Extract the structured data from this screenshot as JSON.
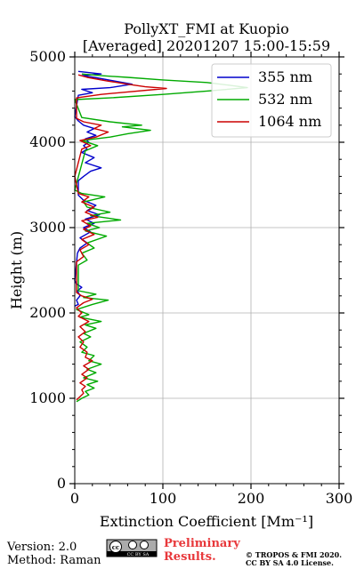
{
  "chart_data": {
    "type": "line",
    "title_line1": "PollyXT_FMI at Kuopio",
    "title_line2": "[Averaged] 20201207 15:00-15:59",
    "xlabel": "Extinction Coefficient [Mm⁻¹]",
    "ylabel": "Height (m)",
    "xlim": [
      0,
      300
    ],
    "ylim": [
      0,
      5000
    ],
    "xticks": [
      0,
      100,
      200,
      300
    ],
    "yticks": [
      0,
      1000,
      2000,
      3000,
      4000,
      5000
    ],
    "grid": true,
    "legend_position": "top-right",
    "series": [
      {
        "name": "355 nm",
        "color": "#0000cc",
        "points": [
          [
            0,
            2080
          ],
          [
            4,
            2100
          ],
          [
            2,
            2150
          ],
          [
            6,
            2200
          ],
          [
            3,
            2260
          ],
          [
            8,
            2300
          ],
          [
            2,
            2340
          ],
          [
            0,
            2380
          ],
          [
            3,
            2700
          ],
          [
            6,
            2760
          ],
          [
            14,
            2820
          ],
          [
            6,
            2880
          ],
          [
            18,
            2950
          ],
          [
            10,
            3000
          ],
          [
            22,
            3050
          ],
          [
            12,
            3100
          ],
          [
            28,
            3150
          ],
          [
            14,
            3200
          ],
          [
            24,
            3260
          ],
          [
            10,
            3320
          ],
          [
            4,
            3380
          ],
          [
            4,
            3550
          ],
          [
            10,
            3600
          ],
          [
            18,
            3660
          ],
          [
            30,
            3700
          ],
          [
            12,
            3760
          ],
          [
            22,
            3820
          ],
          [
            8,
            3880
          ],
          [
            14,
            3920
          ],
          [
            10,
            3960
          ],
          [
            16,
            4000
          ],
          [
            12,
            4040
          ],
          [
            24,
            4080
          ],
          [
            14,
            4120
          ],
          [
            22,
            4160
          ],
          [
            10,
            4200
          ],
          [
            4,
            4250
          ],
          [
            0,
            4300
          ],
          [
            4,
            4550
          ],
          [
            20,
            4580
          ],
          [
            8,
            4620
          ],
          [
            40,
            4640
          ],
          [
            65,
            4680
          ],
          [
            44,
            4720
          ],
          [
            22,
            4760
          ],
          [
            8,
            4780
          ],
          [
            30,
            4800
          ],
          [
            4,
            4830
          ]
        ]
      },
      {
        "name": "532 nm",
        "color": "#00aa00",
        "points": [
          [
            2,
            960
          ],
          [
            8,
            1000
          ],
          [
            16,
            1040
          ],
          [
            12,
            1080
          ],
          [
            22,
            1120
          ],
          [
            14,
            1160
          ],
          [
            26,
            1200
          ],
          [
            10,
            1240
          ],
          [
            24,
            1300
          ],
          [
            14,
            1340
          ],
          [
            30,
            1400
          ],
          [
            16,
            1440
          ],
          [
            22,
            1500
          ],
          [
            8,
            1540
          ],
          [
            14,
            1600
          ],
          [
            6,
            1660
          ],
          [
            18,
            1720
          ],
          [
            10,
            1760
          ],
          [
            24,
            1820
          ],
          [
            12,
            1860
          ],
          [
            30,
            1900
          ],
          [
            6,
            1950
          ],
          [
            16,
            1980
          ],
          [
            2,
            2040
          ],
          [
            20,
            2100
          ],
          [
            38,
            2150
          ],
          [
            10,
            2180
          ],
          [
            24,
            2220
          ],
          [
            4,
            2260
          ],
          [
            4,
            2560
          ],
          [
            14,
            2620
          ],
          [
            8,
            2700
          ],
          [
            22,
            2760
          ],
          [
            14,
            2820
          ],
          [
            36,
            2900
          ],
          [
            12,
            2960
          ],
          [
            28,
            3000
          ],
          [
            14,
            3050
          ],
          [
            52,
            3090
          ],
          [
            18,
            3140
          ],
          [
            40,
            3180
          ],
          [
            14,
            3240
          ],
          [
            10,
            3300
          ],
          [
            34,
            3360
          ],
          [
            8,
            3400
          ],
          [
            0,
            3440
          ],
          [
            12,
            3900
          ],
          [
            26,
            3960
          ],
          [
            8,
            4020
          ],
          [
            40,
            4060
          ],
          [
            60,
            4100
          ],
          [
            86,
            4140
          ],
          [
            54,
            4180
          ],
          [
            76,
            4200
          ],
          [
            40,
            4240
          ],
          [
            8,
            4290
          ],
          [
            0,
            4500
          ],
          [
            40,
            4520
          ],
          [
            100,
            4560
          ],
          [
            150,
            4600
          ],
          [
            196,
            4640
          ],
          [
            174,
            4670
          ],
          [
            150,
            4700
          ],
          [
            100,
            4730
          ],
          [
            60,
            4760
          ],
          [
            30,
            4780
          ],
          [
            8,
            4800
          ]
        ]
      },
      {
        "name": "1064 nm",
        "color": "#cc0000",
        "points": [
          [
            2,
            980
          ],
          [
            6,
            1020
          ],
          [
            10,
            1060
          ],
          [
            8,
            1100
          ],
          [
            12,
            1140
          ],
          [
            6,
            1180
          ],
          [
            14,
            1240
          ],
          [
            8,
            1280
          ],
          [
            16,
            1340
          ],
          [
            10,
            1380
          ],
          [
            20,
            1440
          ],
          [
            12,
            1480
          ],
          [
            14,
            1540
          ],
          [
            6,
            1600
          ],
          [
            10,
            1660
          ],
          [
            4,
            1720
          ],
          [
            12,
            1780
          ],
          [
            6,
            1840
          ],
          [
            16,
            1900
          ],
          [
            4,
            1960
          ],
          [
            8,
            2000
          ],
          [
            2,
            2060
          ],
          [
            10,
            2120
          ],
          [
            20,
            2160
          ],
          [
            8,
            2200
          ],
          [
            2,
            2240
          ],
          [
            2,
            2600
          ],
          [
            10,
            2660
          ],
          [
            6,
            2740
          ],
          [
            16,
            2800
          ],
          [
            8,
            2860
          ],
          [
            22,
            2920
          ],
          [
            10,
            2980
          ],
          [
            18,
            3020
          ],
          [
            8,
            3080
          ],
          [
            26,
            3120
          ],
          [
            12,
            3180
          ],
          [
            22,
            3240
          ],
          [
            8,
            3300
          ],
          [
            16,
            3360
          ],
          [
            4,
            3400
          ],
          [
            0,
            3600
          ],
          [
            8,
            3920
          ],
          [
            18,
            3960
          ],
          [
            6,
            4020
          ],
          [
            24,
            4060
          ],
          [
            38,
            4120
          ],
          [
            22,
            4160
          ],
          [
            30,
            4200
          ],
          [
            10,
            4240
          ],
          [
            2,
            4280
          ],
          [
            2,
            4520
          ],
          [
            30,
            4560
          ],
          [
            60,
            4590
          ],
          [
            104,
            4630
          ],
          [
            80,
            4650
          ],
          [
            60,
            4680
          ],
          [
            36,
            4720
          ],
          [
            14,
            4760
          ],
          [
            4,
            4790
          ]
        ]
      }
    ]
  },
  "footer": {
    "version": "Version: 2.0",
    "method": "Method: Raman",
    "cc_badge": "CC BY SA",
    "preliminary_line1": "Preliminary",
    "preliminary_line2": "Results.",
    "copyright_line1": "© TROPOS & FMI 2020.",
    "copyright_line2": "CC BY SA 4.0 License."
  },
  "colors": {
    "preliminary": "#e8383b",
    "grid": "#b0b0b0",
    "axis": "#000000"
  }
}
